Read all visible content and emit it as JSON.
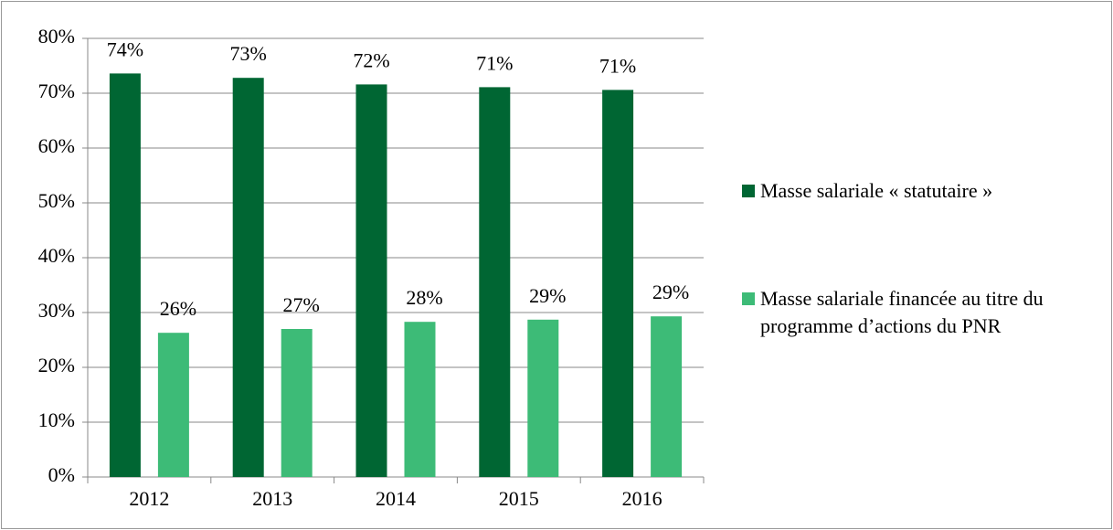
{
  "chart_data": {
    "type": "bar",
    "categories": [
      "2012",
      "2013",
      "2014",
      "2015",
      "2016"
    ],
    "series": [
      {
        "name": "Masse salariale « statutaire »",
        "color": "#006633",
        "values": [
          73.6,
          72.8,
          71.6,
          71.1,
          70.6
        ],
        "value_labels": [
          "74%",
          "73%",
          "72%",
          "71%",
          "71%"
        ]
      },
      {
        "name": "Masse salariale financée au titre du programme d’actions du PNR",
        "color": "#3dbb77",
        "values": [
          26.3,
          27.0,
          28.3,
          28.7,
          29.3
        ],
        "value_labels": [
          "26%",
          "27%",
          "28%",
          "29%",
          "29%"
        ]
      }
    ],
    "ylim": [
      0,
      80
    ],
    "yticks": [
      {
        "value": 0,
        "label": "0%"
      },
      {
        "value": 10,
        "label": "10%"
      },
      {
        "value": 20,
        "label": "20%"
      },
      {
        "value": 30,
        "label": "30%"
      },
      {
        "value": 40,
        "label": "40%"
      },
      {
        "value": 50,
        "label": "50%"
      },
      {
        "value": 60,
        "label": "60%"
      },
      {
        "value": 70,
        "label": "70%"
      },
      {
        "value": 80,
        "label": "80%"
      }
    ],
    "grid": true,
    "legend": "right"
  }
}
